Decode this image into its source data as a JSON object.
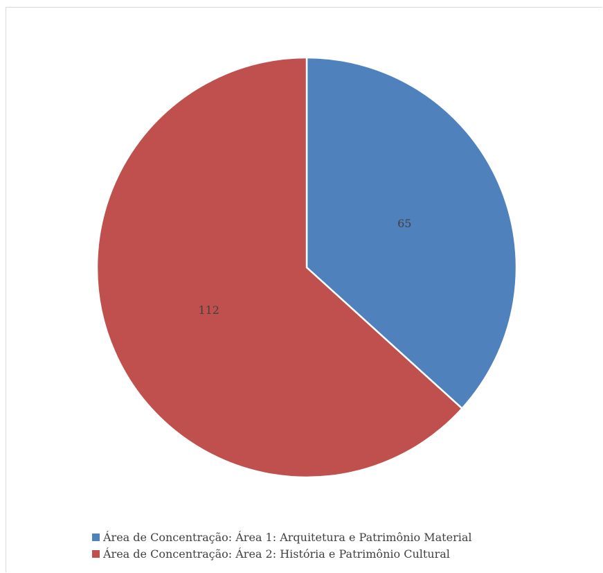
{
  "chart_data": {
    "type": "pie",
    "title": "",
    "categories": [
      "Área de Concentração: Área 1: Arquitetura e Patrimônio Material",
      "Área de Concentração: Área 2: História e Patrimônio Cultural"
    ],
    "values": [
      65,
      112
    ],
    "data_labels": [
      "65",
      "112"
    ],
    "colors": [
      "#4f81bd",
      "#c0504d"
    ],
    "start_angle_deg": 0,
    "direction": "clockwise",
    "legend_position": "bottom"
  }
}
